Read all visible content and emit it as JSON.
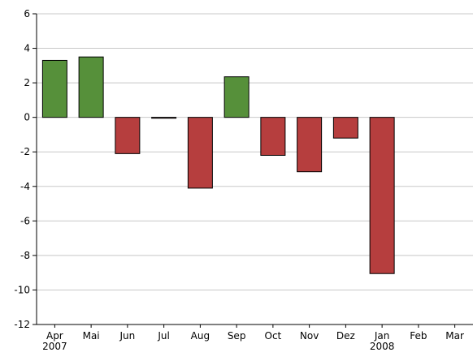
{
  "chart_data": {
    "type": "bar",
    "categories": [
      "Apr\n2007",
      "Mai",
      "Jun",
      "Jul",
      "Aug",
      "Sep",
      "Oct",
      "Nov",
      "Dez",
      "Jan\n2008",
      "Feb",
      "Mar"
    ],
    "values": [
      3.3,
      3.5,
      -2.1,
      -0.05,
      -4.1,
      2.35,
      -2.2,
      -3.15,
      -1.2,
      -9.05,
      null,
      null
    ],
    "positive_color": "#56903a",
    "negative_color": "#b63e3e",
    "ylim": [
      -12,
      6
    ],
    "yticks": [
      -12,
      -10,
      -8,
      -6,
      -4,
      -2,
      0,
      2,
      4,
      6
    ],
    "grid": true
  }
}
